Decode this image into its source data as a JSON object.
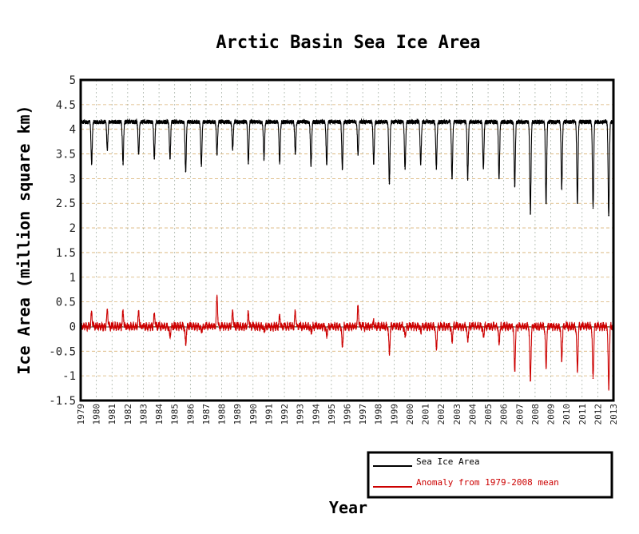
{
  "chart_data": {
    "type": "line",
    "title": "Arctic Basin Sea Ice Area",
    "ylabel": "Ice Area (million square km)",
    "xlabel": "Year",
    "xlim": [
      1979,
      2013
    ],
    "ylim": [
      -1.5,
      5
    ],
    "y_ticks": [
      "5",
      "4.5",
      "4",
      "3.5",
      "3",
      "2.5",
      "2",
      "1.5",
      "1",
      "0.5",
      "0",
      "-0.5",
      "-1",
      "-1.5"
    ],
    "x_ticks": [
      "1979",
      "1980",
      "1981",
      "1982",
      "1983",
      "1984",
      "1985",
      "1986",
      "1987",
      "1988",
      "1989",
      "1990",
      "1991",
      "1992",
      "1993",
      "1994",
      "1995",
      "1996",
      "1997",
      "1998",
      "1999",
      "2000",
      "2001",
      "2002",
      "2003",
      "2004",
      "2005",
      "2006",
      "2007",
      "2008",
      "2009",
      "2010",
      "2011",
      "2012",
      "2013"
    ],
    "grid": true,
    "legend_position": "bottom-right",
    "series": [
      {
        "name": "Sea Ice Area",
        "color": "#000000",
        "summer_minima": [
          {
            "year": 1979,
            "value": 3.3
          },
          {
            "year": 1980,
            "value": 3.6
          },
          {
            "year": 1981,
            "value": 3.3
          },
          {
            "year": 1982,
            "value": 3.5
          },
          {
            "year": 1983,
            "value": 3.4
          },
          {
            "year": 1984,
            "value": 3.4
          },
          {
            "year": 1985,
            "value": 3.15
          },
          {
            "year": 1986,
            "value": 3.25
          },
          {
            "year": 1987,
            "value": 3.5
          },
          {
            "year": 1988,
            "value": 3.6
          },
          {
            "year": 1989,
            "value": 3.3
          },
          {
            "year": 1990,
            "value": 3.4
          },
          {
            "year": 1991,
            "value": 3.3
          },
          {
            "year": 1992,
            "value": 3.5
          },
          {
            "year": 1993,
            "value": 3.25
          },
          {
            "year": 1994,
            "value": 3.3
          },
          {
            "year": 1995,
            "value": 3.2
          },
          {
            "year": 1996,
            "value": 3.5
          },
          {
            "year": 1997,
            "value": 3.3
          },
          {
            "year": 1998,
            "value": 2.9
          },
          {
            "year": 1999,
            "value": 3.2
          },
          {
            "year": 2000,
            "value": 3.3
          },
          {
            "year": 2001,
            "value": 3.2
          },
          {
            "year": 2002,
            "value": 3.0
          },
          {
            "year": 2003,
            "value": 3.0
          },
          {
            "year": 2004,
            "value": 3.2
          },
          {
            "year": 2005,
            "value": 3.0
          },
          {
            "year": 2006,
            "value": 2.85
          },
          {
            "year": 2007,
            "value": 2.3
          },
          {
            "year": 2008,
            "value": 2.5
          },
          {
            "year": 2009,
            "value": 2.8
          },
          {
            "year": 2010,
            "value": 2.5
          },
          {
            "year": 2011,
            "value": 2.4
          },
          {
            "year": 2012,
            "value": 2.25
          }
        ],
        "winter_level": 4.15
      },
      {
        "name": "Anomaly from 1979-2008 mean",
        "color": "#cc0000",
        "summer_anomalies": [
          {
            "year": 1979,
            "value": 0.3
          },
          {
            "year": 1980,
            "value": 0.35
          },
          {
            "year": 1981,
            "value": 0.3
          },
          {
            "year": 1982,
            "value": 0.3
          },
          {
            "year": 1983,
            "value": 0.25
          },
          {
            "year": 1984,
            "value": -0.2
          },
          {
            "year": 1985,
            "value": -0.35
          },
          {
            "year": 1986,
            "value": -0.1
          },
          {
            "year": 1987,
            "value": 0.6
          },
          {
            "year": 1988,
            "value": 0.3
          },
          {
            "year": 1989,
            "value": 0.3
          },
          {
            "year": 1990,
            "value": -0.1
          },
          {
            "year": 1991,
            "value": 0.2
          },
          {
            "year": 1992,
            "value": 0.3
          },
          {
            "year": 1993,
            "value": -0.1
          },
          {
            "year": 1994,
            "value": -0.2
          },
          {
            "year": 1995,
            "value": -0.4
          },
          {
            "year": 1996,
            "value": 0.4
          },
          {
            "year": 1997,
            "value": 0.1
          },
          {
            "year": 1998,
            "value": -0.55
          },
          {
            "year": 1999,
            "value": -0.2
          },
          {
            "year": 2000,
            "value": -0.1
          },
          {
            "year": 2001,
            "value": -0.45
          },
          {
            "year": 2002,
            "value": -0.3
          },
          {
            "year": 2003,
            "value": -0.3
          },
          {
            "year": 2004,
            "value": -0.2
          },
          {
            "year": 2005,
            "value": -0.35
          },
          {
            "year": 2006,
            "value": -0.9
          },
          {
            "year": 2007,
            "value": -1.1
          },
          {
            "year": 2008,
            "value": -0.85
          },
          {
            "year": 2009,
            "value": -0.7
          },
          {
            "year": 2010,
            "value": -0.9
          },
          {
            "year": 2011,
            "value": -1.05
          },
          {
            "year": 2012,
            "value": -1.25
          }
        ]
      }
    ]
  }
}
